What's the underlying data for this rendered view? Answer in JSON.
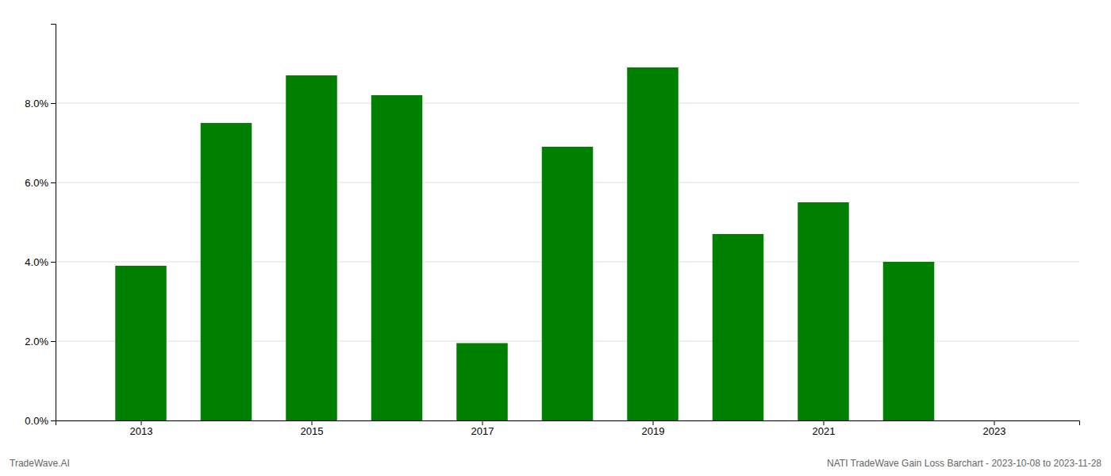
{
  "chart_data": {
    "type": "bar",
    "x": [
      2013,
      2014,
      2015,
      2016,
      2017,
      2018,
      2019,
      2020,
      2021,
      2022
    ],
    "values": [
      0.039,
      0.075,
      0.087,
      0.082,
      0.0195,
      0.069,
      0.089,
      0.047,
      0.055,
      0.04
    ],
    "color": "#008000",
    "xlim": [
      2012,
      2024
    ],
    "xticks": [
      2013,
      2015,
      2017,
      2019,
      2021,
      2023
    ],
    "ylim": [
      0,
      0.1
    ],
    "yticks": [
      {
        "value": 0.0,
        "label": "0.0%"
      },
      {
        "value": 0.02,
        "label": "2.0%"
      },
      {
        "value": 0.04,
        "label": "4.0%"
      },
      {
        "value": 0.06,
        "label": "6.0%"
      },
      {
        "value": 0.08,
        "label": "8.0%"
      }
    ],
    "grid": true,
    "annotations": [
      "TradeWave.AI",
      "NATI TradeWave Gain Loss Barchart - 2023-10-08 to 2023-11-28"
    ]
  }
}
